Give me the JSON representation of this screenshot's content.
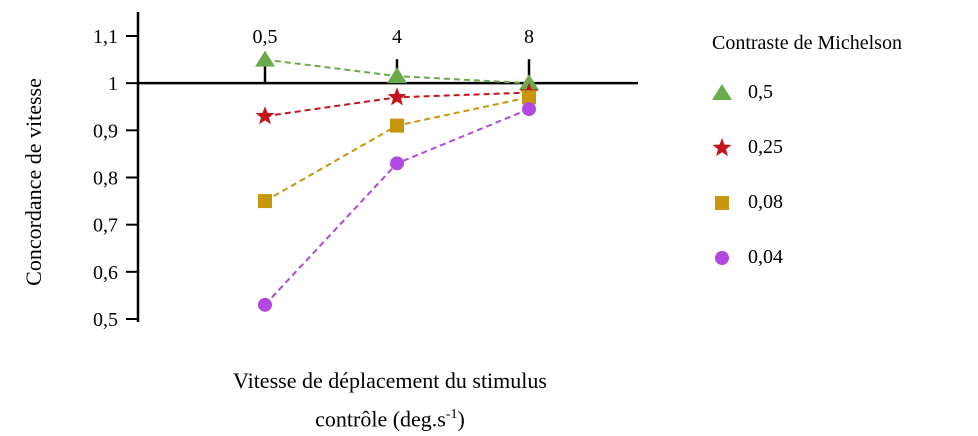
{
  "chart_data": {
    "type": "line",
    "xlabel": "Vitesse de déplacement du stimulus",
    "xlabel_line2_prefix": "contrôle (deg.s",
    "xlabel_line2_sup": "-1",
    "xlabel_line2_suffix": ")",
    "ylabel": "Concordance de vitesse",
    "x_categories": [
      "0,5",
      "4",
      "8"
    ],
    "ylim": [
      0.5,
      1.1
    ],
    "yticks": [
      {
        "value": 0.5,
        "label": "0,5"
      },
      {
        "value": 0.6,
        "label": "0,6"
      },
      {
        "value": 0.7,
        "label": "0,7"
      },
      {
        "value": 0.8,
        "label": "0,8"
      },
      {
        "value": 0.9,
        "label": "0,9"
      },
      {
        "value": 1.0,
        "label": "1"
      },
      {
        "value": 1.1,
        "label": "1,1"
      }
    ],
    "reference_line": 1.0,
    "legend_title": "Contraste de Michelson",
    "legend_placement": "right",
    "series": [
      {
        "name": "0,5",
        "marker": "triangle",
        "color": "#6aaa4a",
        "values": [
          1.05,
          1.015,
          1.0
        ]
      },
      {
        "name": "0,25",
        "marker": "star",
        "color": "#c0161c",
        "values": [
          0.93,
          0.97,
          0.98
        ]
      },
      {
        "name": "0,08",
        "marker": "square",
        "color": "#c8960c",
        "values": [
          0.75,
          0.91,
          0.97
        ]
      },
      {
        "name": "0,04",
        "marker": "circle",
        "color": "#b148df",
        "values": [
          0.53,
          0.83,
          0.945
        ]
      }
    ]
  }
}
